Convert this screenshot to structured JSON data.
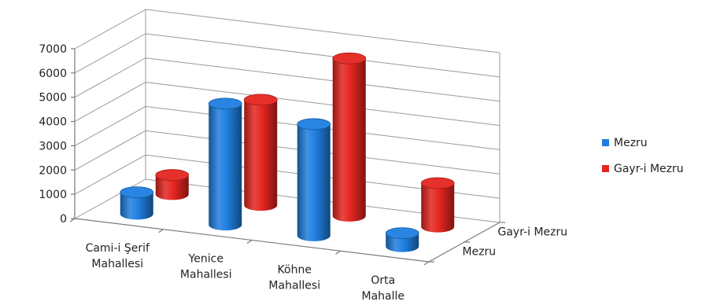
{
  "chart_data": {
    "type": "bar",
    "subtype": "3d-cylinder",
    "title": "",
    "xlabel": "",
    "ylabel": "",
    "ylim": [
      0,
      7000
    ],
    "y_ticks": [
      "0",
      "1000",
      "2000",
      "3000",
      "4000",
      "5000",
      "6000",
      "7000"
    ],
    "y_tick_values": [
      0,
      1000,
      2000,
      3000,
      4000,
      5000,
      6000,
      7000
    ],
    "categories": [
      [
        "Cami-i Şerif",
        "Mahallesi"
      ],
      [
        "Yenice",
        "Mahallesi"
      ],
      [
        "Köhne",
        "Mahallesi"
      ],
      [
        "Orta",
        "Mahalle"
      ]
    ],
    "series": [
      {
        "name": "Mezru",
        "color": "#1f7fe0",
        "values": [
          900,
          5000,
          4600,
          550
        ]
      },
      {
        "name": "Gayr-i Mezru",
        "color": "#e52520",
        "values": [
          800,
          4350,
          6500,
          1800
        ]
      }
    ],
    "depth_labels": [
      "Gayr-i Mezru",
      "Mezru"
    ],
    "grid": true,
    "legend_position": "right"
  }
}
